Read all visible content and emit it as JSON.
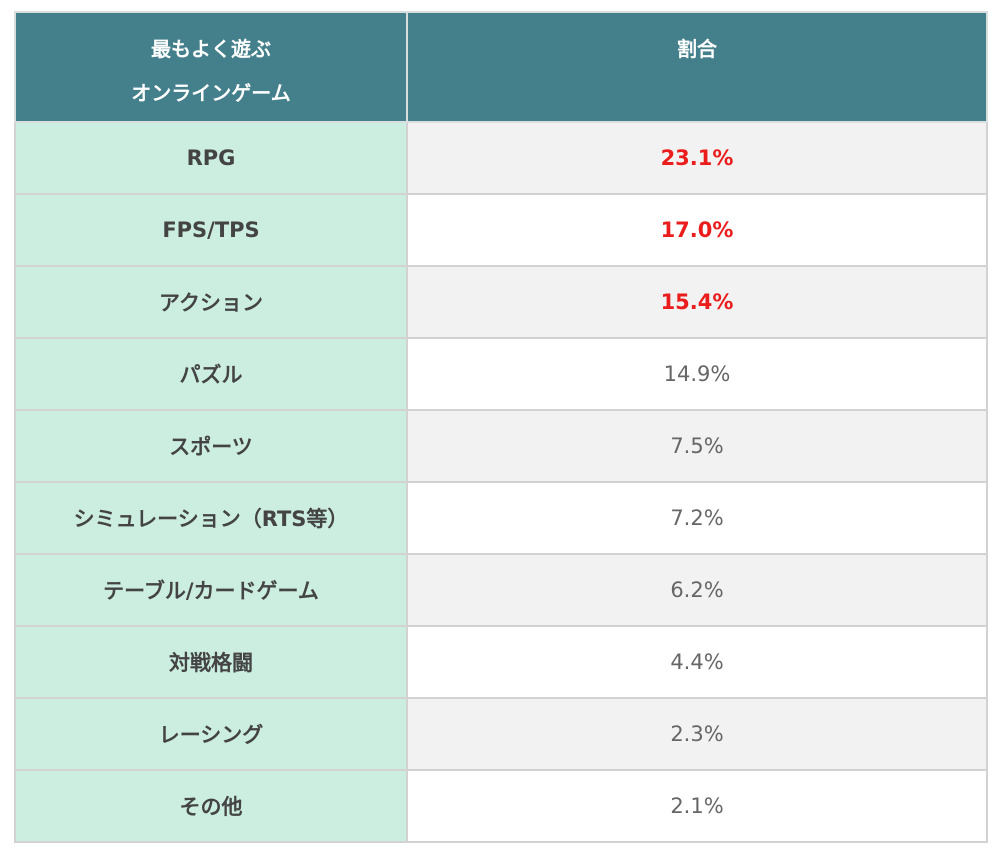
{
  "header": {
    "col1_line1": "最もよく遊ぶ",
    "col1_line2": "オンラインゲーム",
    "col2": "割合"
  },
  "rows": [
    {
      "category": "RPG",
      "share": "23.1%",
      "highlight": true
    },
    {
      "category": "FPS/TPS",
      "share": "17.0%",
      "highlight": true
    },
    {
      "category": "アクション",
      "share": "15.4%",
      "highlight": true
    },
    {
      "category": "パズル",
      "share": "14.9%",
      "highlight": false
    },
    {
      "category": "スポーツ",
      "share": "7.5%",
      "highlight": false
    },
    {
      "category": "シミュレーション（RTS等）",
      "share": "7.2%",
      "highlight": false
    },
    {
      "category": "テーブル/カードゲーム",
      "share": "6.2%",
      "highlight": false
    },
    {
      "category": "対戦格闘",
      "share": "4.4%",
      "highlight": false
    },
    {
      "category": "レーシング",
      "share": "2.3%",
      "highlight": false
    },
    {
      "category": "その他",
      "share": "2.1%",
      "highlight": false
    }
  ],
  "colors": {
    "header_bg": "#447f8c",
    "category_bg": "#cceee1",
    "highlight_text": "#ea1c1c",
    "alt_row_bg": "#f2f2f2"
  }
}
